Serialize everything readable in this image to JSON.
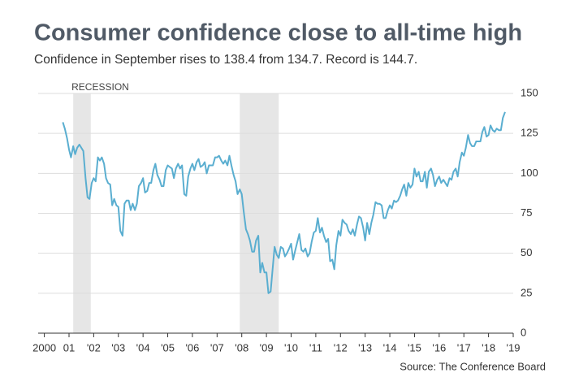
{
  "chart_data": {
    "type": "line",
    "title": "Consumer confidence close to all-time high",
    "subtitle": "Confidence in September rises to 138.4 from 134.7. Record is 144.7.",
    "source": "Source: The Conference Board",
    "recession_label": "RECESSION",
    "recessions": [
      [
        2001.17,
        2001.88
      ],
      [
        2007.92,
        2009.5
      ]
    ],
    "color": "#5aaed0",
    "grid": true,
    "xlim": [
      1999.75,
      2019.0
    ],
    "ylim": [
      0,
      150
    ],
    "yticks": [
      0,
      25,
      50,
      75,
      100,
      125,
      150
    ],
    "xticks": [
      2000,
      {
        "value": 2001,
        "label": "01"
      },
      {
        "value": 2002,
        "label": "'02"
      },
      {
        "value": 2003,
        "label": "'03"
      },
      {
        "value": 2004,
        "label": "'04"
      },
      {
        "value": 2005,
        "label": "'05"
      },
      {
        "value": 2006,
        "label": "'06"
      },
      {
        "value": 2007,
        "label": "'07"
      },
      {
        "value": 2008,
        "label": "'08"
      },
      {
        "value": 2009,
        "label": "'09"
      },
      {
        "value": 2010,
        "label": "'10"
      },
      {
        "value": 2011,
        "label": "'11"
      },
      {
        "value": 2012,
        "label": "'12"
      },
      {
        "value": 2013,
        "label": "'13"
      },
      {
        "value": 2014,
        "label": "'14"
      },
      {
        "value": 2015,
        "label": "'15"
      },
      {
        "value": 2016,
        "label": "'16"
      },
      {
        "value": 2017,
        "label": "'17"
      },
      {
        "value": 2018,
        "label": "'18"
      },
      {
        "value": 2019,
        "label": "'19"
      }
    ],
    "x": [
      2000.75,
      2000.83,
      2000.92,
      2001.0,
      2001.08,
      2001.17,
      2001.25,
      2001.33,
      2001.42,
      2001.5,
      2001.58,
      2001.67,
      2001.75,
      2001.83,
      2001.92,
      2002.0,
      2002.08,
      2002.17,
      2002.25,
      2002.33,
      2002.42,
      2002.5,
      2002.58,
      2002.67,
      2002.75,
      2002.83,
      2002.92,
      2003.0,
      2003.08,
      2003.17,
      2003.25,
      2003.33,
      2003.42,
      2003.5,
      2003.58,
      2003.67,
      2003.75,
      2003.83,
      2003.92,
      2004.0,
      2004.08,
      2004.17,
      2004.25,
      2004.33,
      2004.42,
      2004.5,
      2004.58,
      2004.67,
      2004.75,
      2004.83,
      2004.92,
      2005.0,
      2005.08,
      2005.17,
      2005.25,
      2005.33,
      2005.42,
      2005.5,
      2005.58,
      2005.67,
      2005.75,
      2005.83,
      2005.92,
      2006.0,
      2006.08,
      2006.17,
      2006.25,
      2006.33,
      2006.42,
      2006.5,
      2006.58,
      2006.67,
      2006.75,
      2006.83,
      2006.92,
      2007.0,
      2007.08,
      2007.17,
      2007.25,
      2007.33,
      2007.42,
      2007.5,
      2007.58,
      2007.67,
      2007.75,
      2007.83,
      2007.92,
      2008.0,
      2008.08,
      2008.17,
      2008.25,
      2008.33,
      2008.42,
      2008.5,
      2008.58,
      2008.67,
      2008.75,
      2008.83,
      2008.92,
      2009.0,
      2009.08,
      2009.17,
      2009.25,
      2009.33,
      2009.42,
      2009.5,
      2009.58,
      2009.67,
      2009.75,
      2009.83,
      2009.92,
      2010.0,
      2010.08,
      2010.17,
      2010.25,
      2010.33,
      2010.42,
      2010.5,
      2010.58,
      2010.67,
      2010.75,
      2010.83,
      2010.92,
      2011.0,
      2011.08,
      2011.17,
      2011.25,
      2011.33,
      2011.42,
      2011.5,
      2011.58,
      2011.67,
      2011.75,
      2011.83,
      2011.92,
      2012.0,
      2012.08,
      2012.17,
      2012.25,
      2012.33,
      2012.42,
      2012.5,
      2012.58,
      2012.67,
      2012.75,
      2012.83,
      2012.92,
      2013.0,
      2013.08,
      2013.17,
      2013.25,
      2013.33,
      2013.42,
      2013.5,
      2013.58,
      2013.67,
      2013.75,
      2013.83,
      2013.92,
      2014.0,
      2014.08,
      2014.17,
      2014.25,
      2014.33,
      2014.42,
      2014.5,
      2014.58,
      2014.67,
      2014.75,
      2014.83,
      2014.92,
      2015.0,
      2015.08,
      2015.17,
      2015.25,
      2015.33,
      2015.42,
      2015.5,
      2015.58,
      2015.67,
      2015.75,
      2015.83,
      2015.92,
      2016.0,
      2016.08,
      2016.17,
      2016.25,
      2016.33,
      2016.42,
      2016.5,
      2016.58,
      2016.67,
      2016.75,
      2016.83,
      2016.92,
      2017.0,
      2017.08,
      2017.17,
      2017.25,
      2017.33,
      2017.42,
      2017.5,
      2017.58,
      2017.67,
      2017.75,
      2017.83,
      2017.92,
      2018.0,
      2018.08,
      2018.17,
      2018.25,
      2018.33,
      2018.42,
      2018.5,
      2018.58,
      2018.67
    ],
    "values": [
      132,
      128,
      122,
      115,
      110,
      117,
      112,
      116,
      118,
      116,
      114,
      97,
      85,
      84,
      94,
      97,
      95,
      110,
      108,
      110,
      106,
      97,
      94,
      93,
      80,
      84,
      80,
      79,
      64,
      61,
      81,
      83,
      83,
      77,
      81,
      77,
      81,
      92,
      94,
      97,
      88,
      89,
      94,
      94,
      102,
      106,
      99,
      96,
      92,
      92,
      102,
      105,
      104,
      103,
      97,
      103,
      106,
      103,
      105,
      87,
      86,
      98,
      103,
      106,
      102,
      107,
      109,
      104,
      105,
      107,
      100,
      105,
      105,
      105,
      110,
      110,
      111,
      108,
      106,
      108,
      105,
      111,
      105,
      99,
      95,
      87,
      90,
      87,
      76,
      65,
      62,
      58,
      51,
      51,
      58,
      61,
      38,
      44,
      38,
      38,
      25,
      26,
      40,
      54,
      49,
      47,
      54,
      53,
      48,
      50,
      53,
      56,
      46,
      52,
      57,
      62,
      52,
      51,
      53,
      48,
      50,
      57,
      63,
      64,
      72,
      63,
      66,
      61,
      57,
      59,
      45,
      46,
      40,
      55,
      64,
      61,
      71,
      69,
      68,
      64,
      62,
      65,
      61,
      68,
      73,
      72,
      66,
      58,
      69,
      62,
      69,
      74,
      82,
      81,
      81,
      80,
      72,
      72,
      77,
      80,
      78,
      83,
      82,
      83,
      86,
      90,
      93,
      86,
      94,
      91,
      93,
      103,
      98,
      101,
      95,
      95,
      101,
      91,
      101,
      103,
      99,
      92,
      96,
      98,
      94,
      96,
      94,
      92,
      97,
      96,
      101,
      103,
      98,
      107,
      113,
      111,
      116,
      124,
      119,
      117,
      117,
      120,
      120,
      120,
      126,
      129,
      123,
      124,
      130,
      127,
      126,
      128,
      127,
      127,
      134.7,
      138.4
    ]
  }
}
